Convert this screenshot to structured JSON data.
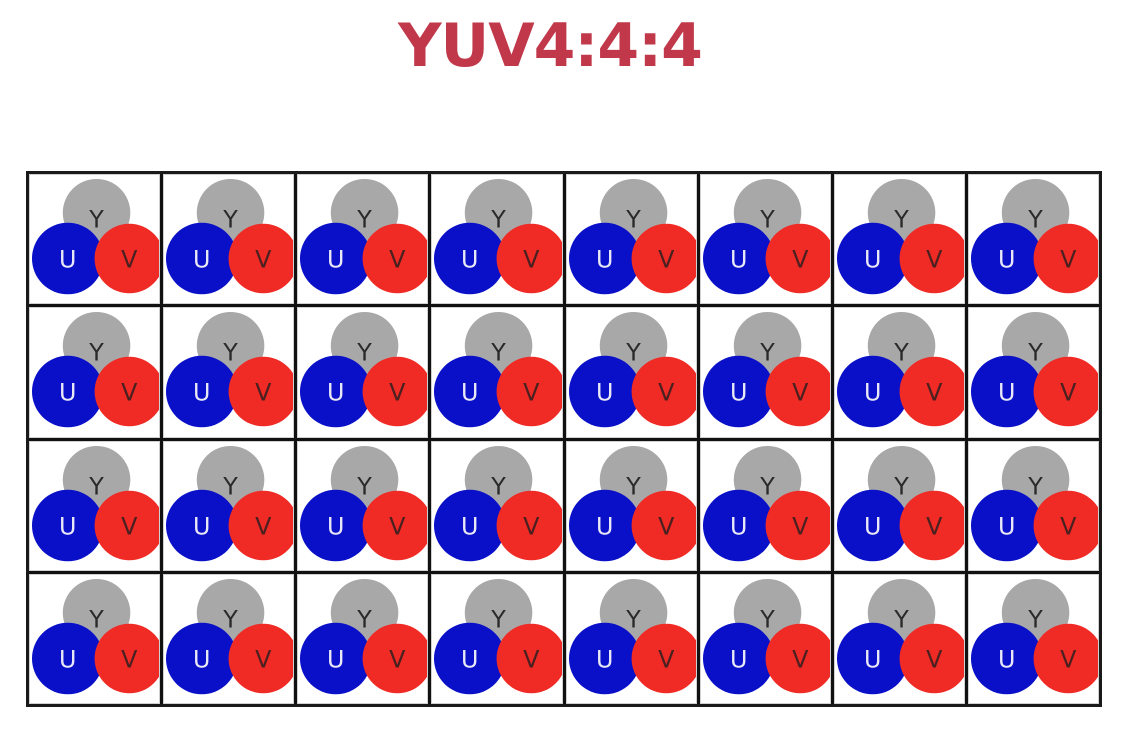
{
  "title": "YUV4:4:4",
  "colors": {
    "title": "#c0384a",
    "y_sample": "#a8a8a8",
    "u_sample": "#0a10c8",
    "v_sample": "#f02a24",
    "u_label": "#e8e8f6",
    "v_label": "#4a2020",
    "y_label": "#2a2a2a"
  },
  "labels": {
    "y": "Y",
    "u": "U",
    "v": "V"
  },
  "grid": {
    "rows": 4,
    "columns": 8
  }
}
